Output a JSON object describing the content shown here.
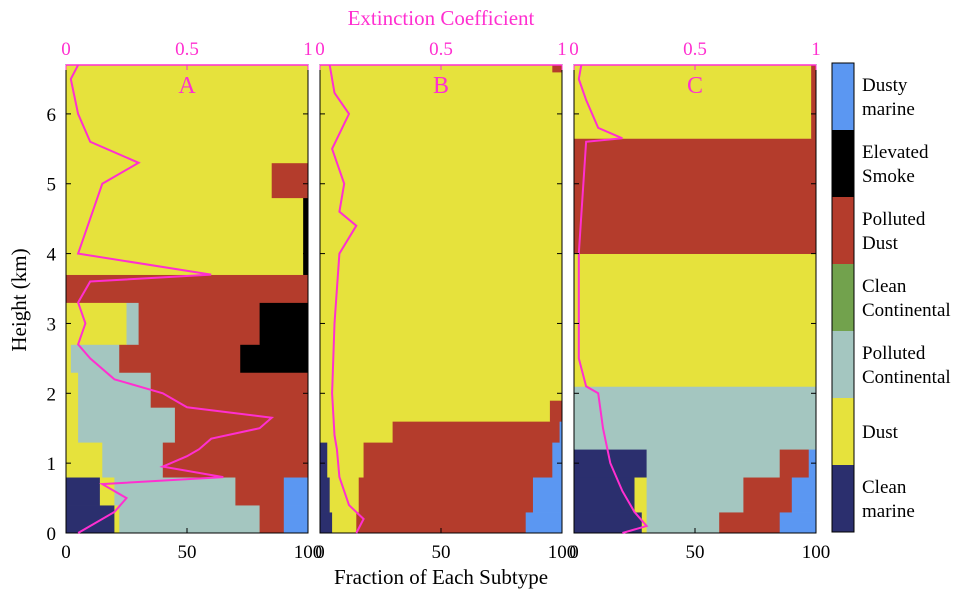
{
  "chart_data": {
    "type": "area",
    "title": "",
    "top_axis_label": "Extinction Coefficient",
    "xlabel": "Fraction of Each Subtype",
    "ylabel": "Height (km)",
    "x_ticks": [
      "0",
      "50",
      "100"
    ],
    "y_ticks": [
      "0",
      "1",
      "2",
      "3",
      "4",
      "5",
      "6"
    ],
    "top_ticks": [
      "0",
      "0.5",
      "1"
    ],
    "ylim": [
      0,
      6.7
    ],
    "xlim": [
      0,
      100
    ],
    "top_xlim": [
      0,
      1
    ],
    "colors": {
      "accent": "#ff2fd0",
      "Dusty marine": "#5b97f2",
      "Elevated Smoke": "#000000",
      "Polluted Dust": "#b43c2c",
      "Clean Continental": "#72a24d",
      "Polluted Continental": "#a4c6c0",
      "Dust": "#e6e23c",
      "Clean marine": "#2b2f6e"
    },
    "legend": [
      {
        "key": "Dusty marine",
        "line1": "Dusty",
        "line2": "marine"
      },
      {
        "key": "Elevated Smoke",
        "line1": "Elevated",
        "line2": "Smoke"
      },
      {
        "key": "Polluted Dust",
        "line1": "Polluted",
        "line2": "Dust"
      },
      {
        "key": "Clean Continental",
        "line1": "Clean",
        "line2": "Continental"
      },
      {
        "key": "Polluted Continental",
        "line1": "Polluted",
        "line2": "Continental"
      },
      {
        "key": "Dust",
        "line1": "Dust",
        "line2": ""
      },
      {
        "key": "Clean marine",
        "line1": "Clean",
        "line2": "marine"
      }
    ],
    "stack_order": [
      "Clean marine",
      "Dust",
      "Polluted Continental",
      "Clean Continental",
      "Polluted Dust",
      "Elevated Smoke",
      "Dusty marine"
    ],
    "panels": [
      {
        "label": "A",
        "layers": [
          {
            "top": 0.4,
            "Clean marine": 20,
            "Dust": 2,
            "Polluted Continental": 58,
            "Polluted Dust": 10,
            "Dusty marine": 10
          },
          {
            "top": 0.8,
            "Clean marine": 14,
            "Dust": 6,
            "Polluted Continental": 50,
            "Polluted Dust": 20,
            "Dusty marine": 10
          },
          {
            "top": 1.3,
            "Dust": 15,
            "Polluted Continental": 25,
            "Polluted Dust": 60
          },
          {
            "top": 1.8,
            "Dust": 5,
            "Polluted Continental": 40,
            "Polluted Dust": 55
          },
          {
            "top": 2.3,
            "Dust": 5,
            "Polluted Continental": 30,
            "Polluted Dust": 65
          },
          {
            "top": 2.7,
            "Dust": 2,
            "Polluted Continental": 20,
            "Polluted Dust": 50,
            "Elevated Smoke": 28
          },
          {
            "top": 3.3,
            "Dust": 25,
            "Polluted Continental": 5,
            "Polluted Dust": 50,
            "Elevated Smoke": 20
          },
          {
            "top": 3.7,
            "Polluted Dust": 100
          },
          {
            "top": 4.8,
            "Dust": 98,
            "Elevated Smoke": 2
          },
          {
            "top": 5.3,
            "Dust": 85,
            "Polluted Dust": 15
          },
          {
            "top": 6.7,
            "Dust": 100
          }
        ],
        "extinction": {
          "h": [
            0.0,
            0.3,
            0.5,
            0.7,
            0.8,
            0.95,
            1.1,
            1.2,
            1.35,
            1.5,
            1.65,
            1.8,
            2.0,
            2.2,
            2.5,
            2.7,
            3.0,
            3.3,
            3.6,
            3.7,
            4.0,
            4.5,
            5.0,
            5.3,
            5.6,
            6.0,
            6.5,
            6.7
          ],
          "v": [
            0.05,
            0.2,
            0.25,
            0.15,
            0.65,
            0.4,
            0.5,
            0.55,
            0.6,
            0.8,
            0.85,
            0.5,
            0.4,
            0.2,
            0.1,
            0.05,
            0.08,
            0.05,
            0.1,
            0.6,
            0.05,
            0.1,
            0.15,
            0.3,
            0.1,
            0.05,
            0.02,
            0.05
          ]
        }
      },
      {
        "label": "B",
        "layers": [
          {
            "top": 0.3,
            "Clean marine": 5,
            "Dust": 10,
            "Polluted Dust": 70,
            "Dusty marine": 15
          },
          {
            "top": 0.8,
            "Clean marine": 4,
            "Dust": 12,
            "Polluted Dust": 72,
            "Dusty marine": 12
          },
          {
            "top": 1.3,
            "Clean marine": 3,
            "Dust": 15,
            "Polluted Dust": 78,
            "Dusty marine": 4
          },
          {
            "top": 1.6,
            "Dust": 30,
            "Polluted Dust": 69,
            "Dusty marine": 1
          },
          {
            "top": 1.9,
            "Dust": 95,
            "Polluted Dust": 5
          },
          {
            "top": 6.6,
            "Dust": 100
          },
          {
            "top": 6.7,
            "Dust": 96,
            "Polluted Dust": 4
          }
        ],
        "extinction": {
          "h": [
            0.0,
            0.2,
            0.4,
            0.8,
            1.2,
            1.4,
            2.0,
            3.0,
            4.0,
            4.4,
            4.6,
            5.0,
            5.5,
            6.0,
            6.3,
            6.7
          ],
          "v": [
            0.15,
            0.18,
            0.12,
            0.08,
            0.07,
            0.06,
            0.05,
            0.06,
            0.08,
            0.15,
            0.08,
            0.1,
            0.05,
            0.12,
            0.06,
            0.04
          ]
        }
      },
      {
        "label": "C",
        "layers": [
          {
            "top": 0.3,
            "Clean marine": 28,
            "Dust": 2,
            "Polluted Continental": 30,
            "Polluted Dust": 25,
            "Dusty marine": 15
          },
          {
            "top": 0.8,
            "Clean marine": 25,
            "Dust": 5,
            "Polluted Continental": 40,
            "Polluted Dust": 20,
            "Dusty marine": 10
          },
          {
            "top": 1.2,
            "Clean marine": 30,
            "Polluted Continental": 55,
            "Polluted Dust": 12,
            "Dusty marine": 3
          },
          {
            "top": 2.1,
            "Polluted Continental": 100
          },
          {
            "top": 4.0,
            "Dust": 100
          },
          {
            "top": 5.65,
            "Polluted Dust": 100
          },
          {
            "top": 6.7,
            "Dust": 98,
            "Polluted Dust": 2
          }
        ],
        "extinction": {
          "h": [
            0.0,
            0.1,
            0.3,
            0.6,
            1.0,
            1.5,
            2.0,
            2.1,
            2.5,
            4.0,
            5.6,
            5.65,
            5.8,
            6.2,
            6.5,
            6.7
          ],
          "v": [
            0.2,
            0.3,
            0.25,
            0.2,
            0.15,
            0.12,
            0.1,
            0.05,
            0.02,
            0.02,
            0.05,
            0.2,
            0.1,
            0.05,
            0.02,
            0.03
          ]
        }
      }
    ]
  }
}
